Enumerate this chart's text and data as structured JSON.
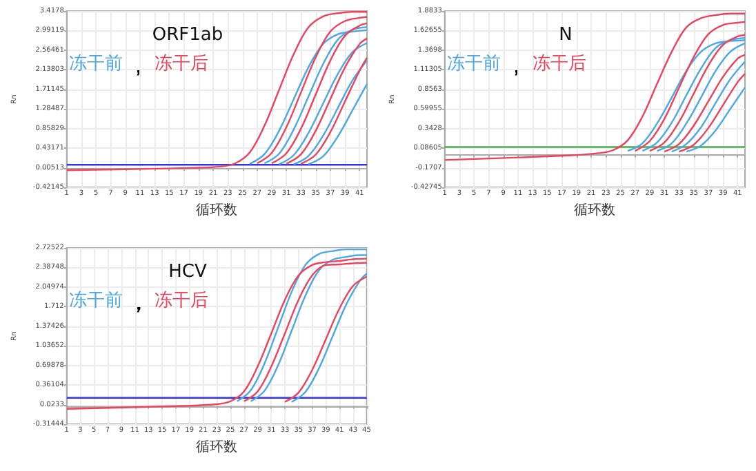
{
  "chart_data": [
    {
      "type": "line",
      "title": "ORF1ab",
      "xlabel": "循环数",
      "ylabel": "Rn",
      "legend": "top left",
      "grid": true,
      "marker": "none",
      "annotations": [
        "，"
      ],
      "xlim": [
        1,
        42
      ],
      "xticks": [
        1,
        3,
        5,
        7,
        9,
        11,
        13,
        15,
        17,
        19,
        21,
        23,
        25,
        27,
        29,
        31,
        33,
        35,
        37,
        39,
        41
      ],
      "ylim": [
        -0.42145,
        3.4178
      ],
      "yticks": [
        -0.42145,
        0.00513,
        0.43171,
        0.85829,
        1.28487,
        1.71145,
        2.13803,
        2.56461,
        2.99119,
        3.4178
      ],
      "ref_lines": [
        {
          "axis": "y",
          "value": 0.07,
          "color": "#3333ee"
        }
      ],
      "series": [
        {
          "name": "冻干前",
          "color": "#4aa8e8",
          "x": [
            26,
            28,
            30,
            32,
            34,
            36,
            38,
            40,
            42
          ],
          "values": [
            0.09,
            0.3,
            0.81,
            1.5,
            2.19,
            2.7,
            2.91,
            2.97,
            3.0
          ]
        },
        {
          "color": "#4aa8e8",
          "x": [
            28,
            30,
            32,
            34,
            36,
            38,
            40,
            42
          ],
          "values": [
            0.1,
            0.31,
            0.84,
            1.55,
            2.26,
            2.79,
            3.01,
            3.07
          ]
        },
        {
          "color": "#4aa8e8",
          "x": [
            30,
            32,
            34,
            36,
            38,
            40,
            42
          ],
          "values": [
            0.08,
            0.28,
            0.76,
            1.4,
            2.04,
            2.52,
            2.72
          ]
        },
        {
          "color": "#4aa8e8",
          "x": [
            32,
            34,
            36,
            38,
            40,
            42
          ],
          "values": [
            0.08,
            0.26,
            0.7,
            1.3,
            1.9,
            2.34
          ]
        },
        {
          "color": "#4aa8e8",
          "x": [
            34,
            36,
            38,
            40,
            42
          ],
          "values": [
            0.08,
            0.25,
            0.68,
            1.25,
            1.83
          ]
        },
        {
          "name": "冻干后",
          "color": "#f0405a",
          "x": [
            1,
            18,
            22,
            24,
            26,
            28,
            30,
            32,
            34,
            36,
            38,
            40,
            42
          ],
          "values": [
            -0.05,
            0,
            0.03,
            0.1,
            0.34,
            0.92,
            1.7,
            2.48,
            3.06,
            3.3,
            3.37,
            3.4,
            3.4
          ]
        },
        {
          "color": "#f0405a",
          "x": [
            27,
            29,
            31,
            33,
            35,
            37,
            39,
            41,
            42
          ],
          "values": [
            0.1,
            0.33,
            0.89,
            1.65,
            2.41,
            2.97,
            3.2,
            3.27,
            3.29
          ]
        },
        {
          "color": "#f0405a",
          "x": [
            29,
            31,
            33,
            35,
            37,
            39,
            41,
            42
          ],
          "values": [
            0.1,
            0.32,
            0.86,
            1.6,
            2.34,
            2.88,
            3.1,
            3.15
          ]
        },
        {
          "color": "#f0405a",
          "x": [
            31,
            33,
            35,
            37,
            39,
            41,
            42
          ],
          "values": [
            0.09,
            0.3,
            0.81,
            1.5,
            2.19,
            2.7,
            2.82
          ]
        },
        {
          "color": "#f0405a",
          "x": [
            33,
            35,
            37,
            39,
            41,
            42
          ],
          "values": [
            0.09,
            0.29,
            0.78,
            1.45,
            2.12,
            2.4
          ]
        }
      ]
    },
    {
      "type": "line",
      "title": "N",
      "xlabel": "循环数",
      "ylabel": "Rn",
      "legend": "top left",
      "grid": true,
      "marker": "none",
      "annotations": [
        "，"
      ],
      "xlim": [
        1,
        42
      ],
      "xticks": [
        1,
        3,
        5,
        7,
        9,
        11,
        13,
        15,
        17,
        19,
        21,
        23,
        25,
        27,
        29,
        31,
        33,
        35,
        37,
        39,
        41
      ],
      "ylim": [
        -0.42745,
        1.8833
      ],
      "yticks": [
        -0.42745,
        -0.1707,
        0.08605,
        0.3428,
        0.59955,
        0.8563,
        1.11305,
        1.3698,
        1.62655,
        1.8833
      ],
      "ref_lines": [
        {
          "axis": "y",
          "value": 0.1,
          "color": "#4caf50"
        }
      ],
      "series": [
        {
          "name": "冻干前",
          "color": "#4aa8e8",
          "x": [
            26,
            28,
            30,
            32,
            34,
            36,
            38,
            40,
            42
          ],
          "values": [
            0.05,
            0.15,
            0.41,
            0.75,
            1.1,
            1.35,
            1.46,
            1.49,
            1.5
          ]
        },
        {
          "color": "#4aa8e8",
          "x": [
            28,
            30,
            32,
            34,
            36,
            38,
            40,
            42
          ],
          "values": [
            0.05,
            0.16,
            0.42,
            0.78,
            1.13,
            1.4,
            1.5,
            1.53
          ]
        },
        {
          "color": "#4aa8e8",
          "x": [
            30,
            32,
            34,
            36,
            38,
            40,
            42
          ],
          "values": [
            0.05,
            0.15,
            0.41,
            0.75,
            1.1,
            1.35,
            1.46
          ]
        },
        {
          "color": "#4aa8e8",
          "x": [
            32,
            34,
            36,
            38,
            40,
            42
          ],
          "values": [
            0.04,
            0.14,
            0.36,
            0.68,
            0.99,
            1.22
          ]
        },
        {
          "color": "#4aa8e8",
          "x": [
            34,
            36,
            38,
            40,
            42
          ],
          "values": [
            0.04,
            0.12,
            0.32,
            0.6,
            0.88
          ]
        },
        {
          "name": "冻干后",
          "color": "#f0405a",
          "x": [
            1,
            18,
            22,
            24,
            26,
            28,
            30,
            32,
            34,
            36,
            38,
            40,
            42
          ],
          "values": [
            -0.07,
            -0.01,
            0.02,
            0.06,
            0.19,
            0.5,
            0.93,
            1.35,
            1.67,
            1.79,
            1.83,
            1.85,
            1.85
          ]
        },
        {
          "color": "#f0405a",
          "x": [
            27,
            29,
            31,
            33,
            35,
            37,
            39,
            41,
            42
          ],
          "values": [
            0.05,
            0.18,
            0.47,
            0.88,
            1.28,
            1.58,
            1.7,
            1.73,
            1.74
          ]
        },
        {
          "color": "#f0405a",
          "x": [
            29,
            31,
            33,
            35,
            37,
            39,
            41,
            42
          ],
          "values": [
            0.05,
            0.16,
            0.43,
            0.8,
            1.17,
            1.44,
            1.55,
            1.57
          ]
        },
        {
          "color": "#f0405a",
          "x": [
            31,
            33,
            35,
            37,
            39,
            41,
            42
          ],
          "values": [
            0.04,
            0.14,
            0.38,
            0.7,
            1.02,
            1.26,
            1.31
          ]
        },
        {
          "color": "#f0405a",
          "x": [
            33,
            35,
            37,
            39,
            41,
            42
          ],
          "values": [
            0.04,
            0.13,
            0.35,
            0.65,
            0.95,
            1.06
          ]
        }
      ]
    },
    {
      "type": "line",
      "title": "HCV",
      "xlabel": "循环数",
      "ylabel": "Rn",
      "legend": "top left",
      "grid": true,
      "marker": "none",
      "annotations": [
        "，"
      ],
      "xlim": [
        1,
        45
      ],
      "xticks": [
        1,
        3,
        5,
        7,
        9,
        11,
        13,
        15,
        17,
        19,
        21,
        23,
        25,
        27,
        29,
        31,
        33,
        35,
        37,
        39,
        41,
        43,
        45
      ],
      "ylim": [
        -0.31444,
        2.72522
      ],
      "yticks": [
        -0.31444,
        0.0233,
        0.36104,
        0.69878,
        1.03652,
        1.37426,
        1.712,
        2.04974,
        2.38748,
        2.72522
      ],
      "ref_lines": [
        {
          "axis": "y",
          "value": 0.14,
          "color": "#3333ee"
        }
      ],
      "series": [
        {
          "name": "冻干前",
          "color": "#4aa8e8",
          "x": [
            26,
            28,
            30,
            32,
            34,
            36,
            38,
            40,
            42,
            44,
            45
          ],
          "values": [
            0.08,
            0.27,
            0.73,
            1.35,
            1.97,
            2.43,
            2.62,
            2.67,
            2.7,
            2.7,
            2.7
          ]
        },
        {
          "color": "#4aa8e8",
          "x": [
            28,
            30,
            32,
            34,
            36,
            38,
            40,
            42,
            44,
            45
          ],
          "values": [
            0.08,
            0.26,
            0.7,
            1.3,
            1.9,
            2.34,
            2.52,
            2.57,
            2.6,
            2.6
          ]
        },
        {
          "color": "#4aa8e8",
          "x": [
            34,
            36,
            38,
            40,
            42,
            44,
            45
          ],
          "values": [
            0.07,
            0.24,
            0.65,
            1.2,
            1.75,
            2.16,
            2.28
          ]
        },
        {
          "name": "冻干后",
          "color": "#f0405a",
          "x": [
            1,
            18,
            23,
            25,
            27,
            29,
            31,
            33,
            35,
            37,
            39,
            41,
            43,
            45
          ],
          "values": [
            -0.05,
            0,
            0.03,
            0.08,
            0.25,
            0.68,
            1.25,
            1.83,
            2.25,
            2.43,
            2.48,
            2.5,
            2.53,
            2.54
          ]
        },
        {
          "color": "#f0405a",
          "x": [
            27,
            29,
            31,
            33,
            35,
            37,
            39,
            41,
            43,
            45
          ],
          "values": [
            0.08,
            0.25,
            0.68,
            1.25,
            1.83,
            2.25,
            2.43,
            2.44,
            2.46,
            2.47
          ]
        },
        {
          "color": "#f0405a",
          "x": [
            33,
            35,
            37,
            39,
            41,
            43,
            45
          ],
          "values": [
            0.07,
            0.23,
            0.62,
            1.15,
            1.68,
            2.07,
            2.23
          ]
        }
      ]
    }
  ]
}
